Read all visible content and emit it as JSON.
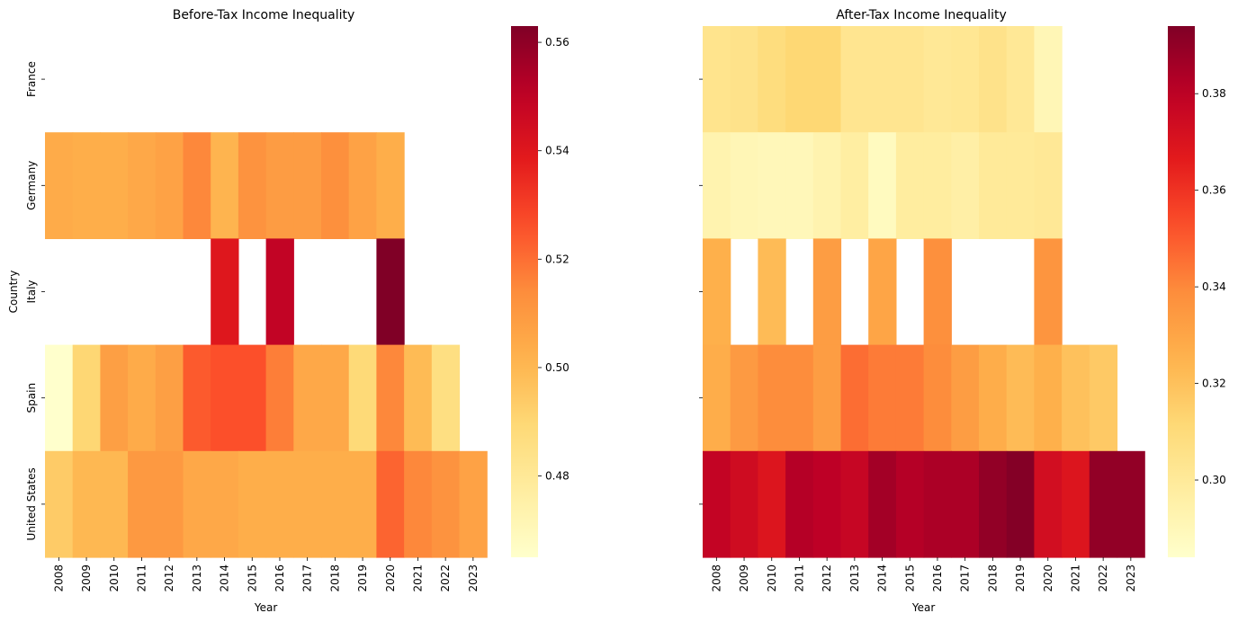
{
  "chart_data": [
    {
      "type": "heatmap",
      "title": "Before-Tax Income Inequality",
      "xlabel": "Year",
      "ylabel": "Country",
      "x_categories": [
        "2008",
        "2009",
        "2010",
        "2011",
        "2012",
        "2013",
        "2014",
        "2015",
        "2016",
        "2017",
        "2018",
        "2019",
        "2020",
        "2021",
        "2022",
        "2023"
      ],
      "y_categories": [
        "France",
        "Germany",
        "Italy",
        "Spain",
        "United States"
      ],
      "colormap": "YlOrRd",
      "vmin": 0.465,
      "vmax": 0.563,
      "colorbar_ticks": [
        "0.48",
        "0.50",
        "0.52",
        "0.54",
        "0.56"
      ],
      "values": [
        [
          null,
          null,
          null,
          null,
          null,
          null,
          null,
          null,
          null,
          null,
          null,
          null,
          null,
          null,
          null,
          null
        ],
        [
          0.504,
          0.503,
          0.503,
          0.505,
          0.507,
          0.515,
          0.501,
          0.512,
          0.509,
          0.509,
          0.513,
          0.507,
          0.503,
          null,
          null,
          null
        ],
        [
          null,
          null,
          null,
          null,
          null,
          null,
          0.54,
          null,
          0.549,
          null,
          null,
          null,
          0.563,
          null,
          null,
          null
        ],
        [
          0.465,
          0.49,
          0.508,
          0.504,
          0.508,
          0.524,
          0.526,
          0.526,
          0.517,
          0.505,
          0.505,
          0.489,
          0.515,
          0.499,
          0.486,
          null
        ],
        [
          0.494,
          0.5,
          0.5,
          0.51,
          0.51,
          0.505,
          0.505,
          0.503,
          0.503,
          0.503,
          0.503,
          0.503,
          0.522,
          0.515,
          0.512,
          0.507
        ]
      ]
    },
    {
      "type": "heatmap",
      "title": "After-Tax Income Inequality",
      "xlabel": "Year",
      "ylabel": "",
      "x_categories": [
        "2008",
        "2009",
        "2010",
        "2011",
        "2012",
        "2013",
        "2014",
        "2015",
        "2016",
        "2017",
        "2018",
        "2019",
        "2020",
        "2021",
        "2022",
        "2023"
      ],
      "y_categories": [
        "France",
        "Germany",
        "Italy",
        "Spain",
        "United States"
      ],
      "colormap": "YlOrRd",
      "vmin": 0.284,
      "vmax": 0.394,
      "colorbar_ticks": [
        "0.30",
        "0.32",
        "0.34",
        "0.36",
        "0.38"
      ],
      "values": [
        [
          0.304,
          0.305,
          0.309,
          0.312,
          0.312,
          0.303,
          0.303,
          0.303,
          0.301,
          0.302,
          0.305,
          0.301,
          0.291,
          null,
          null,
          null
        ],
        [
          0.293,
          0.291,
          0.29,
          0.29,
          0.293,
          0.297,
          0.288,
          0.298,
          0.298,
          0.296,
          0.3,
          0.3,
          0.301,
          null,
          null,
          null
        ],
        [
          0.326,
          null,
          0.322,
          null,
          0.333,
          null,
          0.33,
          null,
          0.338,
          null,
          null,
          null,
          0.336,
          null,
          null,
          null
        ],
        [
          0.327,
          0.334,
          0.339,
          0.339,
          0.333,
          0.346,
          0.343,
          0.343,
          0.339,
          0.333,
          0.327,
          0.322,
          0.326,
          0.32,
          0.317,
          null
        ],
        [
          0.378,
          0.374,
          0.369,
          0.382,
          0.38,
          0.377,
          0.386,
          0.382,
          0.384,
          0.384,
          0.39,
          0.393,
          0.373,
          0.369,
          0.39,
          0.39
        ]
      ]
    }
  ]
}
